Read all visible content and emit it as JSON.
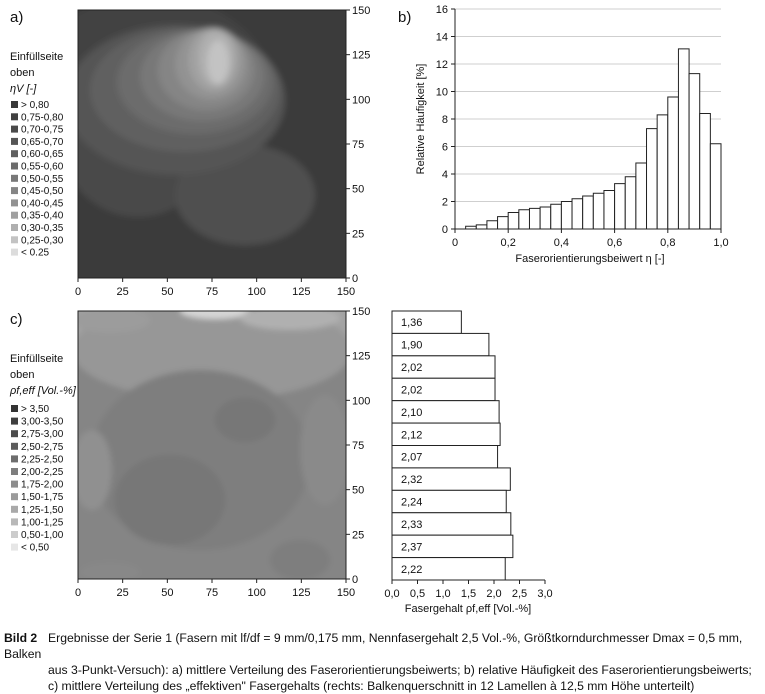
{
  "panel_labels": {
    "a": "a)",
    "b": "b)",
    "c": "c)"
  },
  "chart_data": [
    {
      "id": "a",
      "type": "heatmap",
      "legend_title_lines": [
        "Einfüllseite",
        "oben"
      ],
      "legend_variable": "ηV [-]",
      "legend_entries": [
        {
          "label": "> 0,80",
          "color": "#383838"
        },
        {
          "label": "0,75-0,80",
          "color": "#404040"
        },
        {
          "label": "0,70-0,75",
          "color": "#4a4a4a"
        },
        {
          "label": "0,65-0,70",
          "color": "#555555"
        },
        {
          "label": "0,60-0,65",
          "color": "#606060"
        },
        {
          "label": "0,55-0,60",
          "color": "#6c6c6c"
        },
        {
          "label": "0,50-0,55",
          "color": "#787878"
        },
        {
          "label": "0,45-0,50",
          "color": "#858585"
        },
        {
          "label": "0,40-0,45",
          "color": "#929292"
        },
        {
          "label": "0,35-0,40",
          "color": "#a0a0a0"
        },
        {
          "label": "0,30-0,35",
          "color": "#afafaf"
        },
        {
          "label": "0,25-0,30",
          "color": "#c3c3c3"
        },
        {
          "label": "< 0.25",
          "color": "#dcdcdc"
        }
      ],
      "x_ticks": [
        "0",
        "25",
        "50",
        "75",
        "100",
        "125",
        "150"
      ],
      "y_ticks": [
        "0",
        "25",
        "50",
        "75",
        "100",
        "125",
        "150"
      ],
      "xlim": [
        0,
        150
      ],
      "ylim": [
        0,
        150
      ]
    },
    {
      "id": "b",
      "type": "bar",
      "xlabel": "Faserorientierungsbeiwert η [-]",
      "ylabel": "Relative Häufigkeit [%]",
      "xlim": [
        0,
        1.0
      ],
      "ylim": [
        0,
        16
      ],
      "x_ticks": [
        "0",
        "0,2",
        "0,4",
        "0,6",
        "0,8",
        "1,0"
      ],
      "y_ticks": [
        "0",
        "2",
        "4",
        "6",
        "8",
        "10",
        "12",
        "14",
        "16"
      ],
      "bin_width": 0.04,
      "bin_starts": [
        0.04,
        0.08,
        0.12,
        0.16,
        0.2,
        0.24,
        0.28,
        0.32,
        0.36,
        0.4,
        0.44,
        0.48,
        0.52,
        0.56,
        0.6,
        0.64,
        0.68,
        0.72,
        0.76,
        0.8,
        0.84,
        0.88,
        0.92,
        0.96
      ],
      "values": [
        0.2,
        0.3,
        0.6,
        0.9,
        1.2,
        1.4,
        1.5,
        1.6,
        1.8,
        2.0,
        2.2,
        2.4,
        2.6,
        2.8,
        3.3,
        3.8,
        4.8,
        7.3,
        8.3,
        9.6,
        13.1,
        11.3,
        8.4,
        6.2
      ],
      "tail_value": 5.1,
      "grid": true
    },
    {
      "id": "c",
      "type": "heatmap",
      "legend_title_lines": [
        "Einfüllseite",
        "oben"
      ],
      "legend_variable": "ρf,eff [Vol.-%]",
      "legend_entries": [
        {
          "label": "> 3,50",
          "color": "#333333"
        },
        {
          "label": "3,00-3,50",
          "color": "#3e3e3e"
        },
        {
          "label": "2,75-3,00",
          "color": "#4c4c4c"
        },
        {
          "label": "2,50-2,75",
          "color": "#5c5c5c"
        },
        {
          "label": "2,25-2,50",
          "color": "#6d6d6d"
        },
        {
          "label": "2,00-2,25",
          "color": "#7e7e7e"
        },
        {
          "label": "1,75-2,00",
          "color": "#8d8d8d"
        },
        {
          "label": "1,50-1,75",
          "color": "#9b9b9b"
        },
        {
          "label": "1,25-1,50",
          "color": "#a9a9a9"
        },
        {
          "label": "1,00-1,25",
          "color": "#b8b8b8"
        },
        {
          "label": "0,50-1,00",
          "color": "#cccccc"
        },
        {
          "label": "< 0,50",
          "color": "#e6e6e6"
        }
      ],
      "x_ticks": [
        "0",
        "25",
        "50",
        "75",
        "100",
        "125",
        "150"
      ],
      "y_ticks": [
        "0",
        "25",
        "50",
        "75",
        "100",
        "125",
        "150"
      ],
      "xlim": [
        0,
        150
      ],
      "ylim": [
        0,
        150
      ]
    },
    {
      "id": "c-right",
      "type": "bar",
      "orientation": "horizontal",
      "xlabel": "Fasergehalt ρf,eff [Vol.-%]",
      "xlim": [
        0,
        3.0
      ],
      "x_ticks": [
        "0,0",
        "0,5",
        "1,0",
        "1,5",
        "2,0",
        "2,5",
        "3,0"
      ],
      "values": [
        1.36,
        1.9,
        2.02,
        2.02,
        2.1,
        2.12,
        2.07,
        2.32,
        2.24,
        2.33,
        2.37,
        2.22
      ],
      "value_labels": [
        "1,36",
        "1,90",
        "2,02",
        "2,02",
        "2,10",
        "2,12",
        "2,07",
        "2,32",
        "2,24",
        "2,33",
        "2,37",
        "2,22"
      ]
    }
  ],
  "caption": {
    "prefix": "Bild 2",
    "line1": "Ergebnisse der Serie 1 (Fasern mit lf/df = 9 mm/0,175 mm, Nennfasergehalt 2,5 Vol.-%, Größtkorndurchmesser Dmax = 0,5 mm, Balken",
    "line2": "aus 3-Punkt-Versuch): a) mittlere Verteilung des Faserorientierungsbeiwerts; b) relative Häufigkeit des Faserorientierungsbeiwerts;",
    "line3": "c) mittlere Verteilung des „effektiven\" Fasergehalts (rechts: Balkenquerschnitt in 12 Lamellen à 12,5 mm Höhe unterteilt)"
  }
}
